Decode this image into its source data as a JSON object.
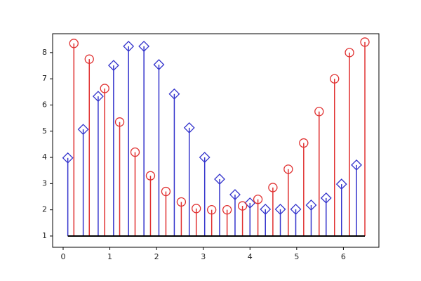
{
  "chart_data": {
    "type": "stem",
    "baseline": 1,
    "baseline_color": "#000000",
    "xlim": [
      -0.225,
      6.76
    ],
    "xticks": [
      0,
      1,
      2,
      3,
      4,
      5,
      6
    ],
    "ylim": [
      0.57,
      8.72
    ],
    "yticks": [
      1,
      2,
      3,
      4,
      5,
      6,
      7,
      8
    ],
    "series": [
      {
        "color": "#3333cc",
        "marker": "diamond",
        "x": [
          0.1,
          0.43,
          0.75,
          1.08,
          1.4,
          1.73,
          2.05,
          2.38,
          2.7,
          3.03,
          3.35,
          3.68,
          4.0,
          4.33,
          4.65,
          4.98,
          5.31,
          5.63,
          5.96,
          6.28
        ],
        "values": [
          3.98,
          5.07,
          6.33,
          7.51,
          8.24,
          8.24,
          7.54,
          6.42,
          5.13,
          4.0,
          3.17,
          2.58,
          2.26,
          2.02,
          2.02,
          2.02,
          2.18,
          2.45,
          2.98,
          3.71
        ]
      },
      {
        "color": "#e03030",
        "marker": "circle",
        "x": [
          0.23,
          0.56,
          0.89,
          1.21,
          1.54,
          1.87,
          2.2,
          2.53,
          2.85,
          3.18,
          3.51,
          3.84,
          4.17,
          4.49,
          4.82,
          5.15,
          5.48,
          5.81,
          6.13,
          6.46
        ],
        "values": [
          8.35,
          7.75,
          6.63,
          5.35,
          4.2,
          3.3,
          2.7,
          2.3,
          2.05,
          2.0,
          2.0,
          2.15,
          2.4,
          2.85,
          3.55,
          4.55,
          5.75,
          7.0,
          8.0,
          8.4
        ]
      }
    ]
  }
}
